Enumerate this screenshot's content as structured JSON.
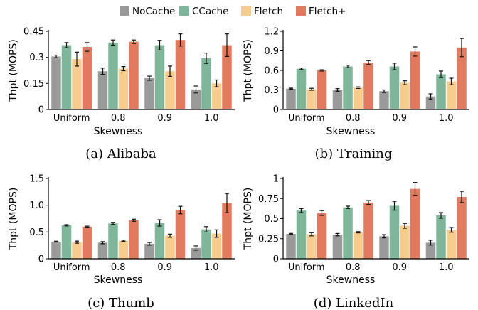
{
  "legend": [
    {
      "name": "NoCache",
      "color": "#9a9a9a"
    },
    {
      "name": "CCache",
      "color": "#7fb69a"
    },
    {
      "name": "Fletch",
      "color": "#f6cc8f"
    },
    {
      "name": "Fletch+",
      "color": "#e27a5f"
    }
  ],
  "chart_data": [
    {
      "type": "bar",
      "caption": "(a) Alibaba",
      "xlabel": "Skewness",
      "ylabel": "Thpt (MOPS)",
      "categories": [
        "Uniform",
        "0.8",
        "0.9",
        "1.0"
      ],
      "ylim": [
        0,
        0.45
      ],
      "yticks": [
        0,
        0.15,
        0.3,
        0.45
      ],
      "ytick_labels": [
        "0",
        "0.15",
        "0.3",
        "0.45"
      ],
      "series": [
        {
          "name": "NoCache",
          "values": [
            0.305,
            0.22,
            0.18,
            0.115
          ],
          "errors": [
            0.008,
            0.018,
            0.012,
            0.02
          ]
        },
        {
          "name": "CCache",
          "values": [
            0.37,
            0.385,
            0.37,
            0.295
          ],
          "errors": [
            0.015,
            0.015,
            0.028,
            0.03
          ]
        },
        {
          "name": "Fletch",
          "values": [
            0.29,
            0.235,
            0.22,
            0.15
          ],
          "errors": [
            0.04,
            0.012,
            0.03,
            0.02
          ]
        },
        {
          "name": "Fletch+",
          "values": [
            0.36,
            0.39,
            0.4,
            0.37
          ],
          "errors": [
            0.025,
            0.01,
            0.035,
            0.065
          ]
        }
      ]
    },
    {
      "type": "bar",
      "caption": "(b) Training",
      "xlabel": "Skewness",
      "ylabel": "Thpt (MOPS)",
      "categories": [
        "Uniform",
        "0.8",
        "0.9",
        "1.0"
      ],
      "ylim": [
        0,
        1.2
      ],
      "yticks": [
        0,
        0.3,
        0.6,
        0.9,
        1.2
      ],
      "ytick_labels": [
        "0",
        "0.3",
        "0.6",
        "0.9",
        "1.2"
      ],
      "series": [
        {
          "name": "NoCache",
          "values": [
            0.32,
            0.3,
            0.28,
            0.2
          ],
          "errors": [
            0.008,
            0.02,
            0.02,
            0.04
          ]
        },
        {
          "name": "CCache",
          "values": [
            0.625,
            0.66,
            0.66,
            0.54
          ],
          "errors": [
            0.012,
            0.02,
            0.05,
            0.05
          ]
        },
        {
          "name": "Fletch",
          "values": [
            0.31,
            0.335,
            0.41,
            0.43
          ],
          "errors": [
            0.015,
            0.012,
            0.03,
            0.05
          ]
        },
        {
          "name": "Fletch+",
          "values": [
            0.6,
            0.72,
            0.89,
            0.95
          ],
          "errors": [
            0.01,
            0.03,
            0.07,
            0.14
          ]
        }
      ]
    },
    {
      "type": "bar",
      "caption": "(c) Thumb",
      "xlabel": "Skewness",
      "ylabel": "Thpt (MOPS)",
      "categories": [
        "Uniform",
        "0.8",
        "0.9",
        "1.0"
      ],
      "ylim": [
        0,
        1.5
      ],
      "yticks": [
        0,
        0.5,
        1.0,
        1.5
      ],
      "ytick_labels": [
        "0",
        "0.5",
        "1.0",
        "1.5"
      ],
      "series": [
        {
          "name": "NoCache",
          "values": [
            0.32,
            0.3,
            0.28,
            0.2
          ],
          "errors": [
            0.008,
            0.02,
            0.025,
            0.04
          ]
        },
        {
          "name": "CCache",
          "values": [
            0.625,
            0.66,
            0.67,
            0.55
          ],
          "errors": [
            0.012,
            0.02,
            0.06,
            0.05
          ]
        },
        {
          "name": "Fletch",
          "values": [
            0.31,
            0.335,
            0.43,
            0.47
          ],
          "errors": [
            0.02,
            0.012,
            0.03,
            0.07
          ]
        },
        {
          "name": "Fletch+",
          "values": [
            0.6,
            0.72,
            0.91,
            1.04
          ],
          "errors": [
            0.01,
            0.02,
            0.07,
            0.18
          ]
        }
      ]
    },
    {
      "type": "bar",
      "caption": "(d) LinkedIn",
      "xlabel": "Skewness",
      "ylabel": "Thpt (MOPS)",
      "categories": [
        "Uniform",
        "0.8",
        "0.9",
        "1.0"
      ],
      "ylim": [
        0,
        1.0
      ],
      "yticks": [
        0,
        0.25,
        0.5,
        0.75,
        1.0
      ],
      "ytick_labels": [
        "0",
        "0.25",
        "0.5",
        "0.75",
        "1"
      ],
      "series": [
        {
          "name": "NoCache",
          "values": [
            0.31,
            0.3,
            0.28,
            0.2
          ],
          "errors": [
            0.006,
            0.015,
            0.02,
            0.03
          ]
        },
        {
          "name": "CCache",
          "values": [
            0.6,
            0.64,
            0.66,
            0.54
          ],
          "errors": [
            0.025,
            0.015,
            0.055,
            0.035
          ]
        },
        {
          "name": "Fletch",
          "values": [
            0.305,
            0.33,
            0.41,
            0.36
          ],
          "errors": [
            0.02,
            0.008,
            0.03,
            0.03
          ]
        },
        {
          "name": "Fletch+",
          "values": [
            0.57,
            0.7,
            0.87,
            0.77
          ],
          "errors": [
            0.03,
            0.025,
            0.08,
            0.07
          ]
        }
      ]
    }
  ]
}
